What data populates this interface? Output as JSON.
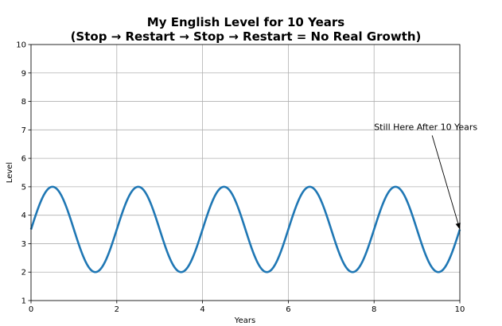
{
  "chart_data": {
    "type": "line",
    "title_line1": "My English Level for 10 Years",
    "title_line2": "(Stop → Restart → Stop → Restart = No Real Growth)",
    "xlabel": "Years",
    "ylabel": "Level",
    "xlim": [
      0,
      10
    ],
    "ylim": [
      1,
      10
    ],
    "xticks": [
      0,
      2,
      4,
      6,
      8,
      10
    ],
    "yticks": [
      1,
      2,
      3,
      4,
      5,
      6,
      7,
      8,
      9,
      10
    ],
    "grid": true,
    "series": [
      {
        "function": "3.5 + 1.5*sin(pi*x)",
        "x": [
          0,
          0.5,
          1,
          1.5,
          2,
          2.5,
          3,
          3.5,
          4,
          4.5,
          5,
          5.5,
          6,
          6.5,
          7,
          7.5,
          8,
          8.5,
          9,
          9.5,
          10
        ],
        "values": [
          3.5,
          5,
          3.5,
          2,
          3.5,
          5,
          3.5,
          2,
          3.5,
          5,
          3.5,
          2,
          3.5,
          5,
          3.5,
          2,
          3.5,
          5,
          3.5,
          2,
          3.5
        ],
        "color": "#1f77b4"
      }
    ],
    "annotation": {
      "text": "Still Here After 10 Years",
      "text_x": 8.0,
      "text_y": 7.0,
      "point_x": 10,
      "point_y": 3.5
    }
  }
}
